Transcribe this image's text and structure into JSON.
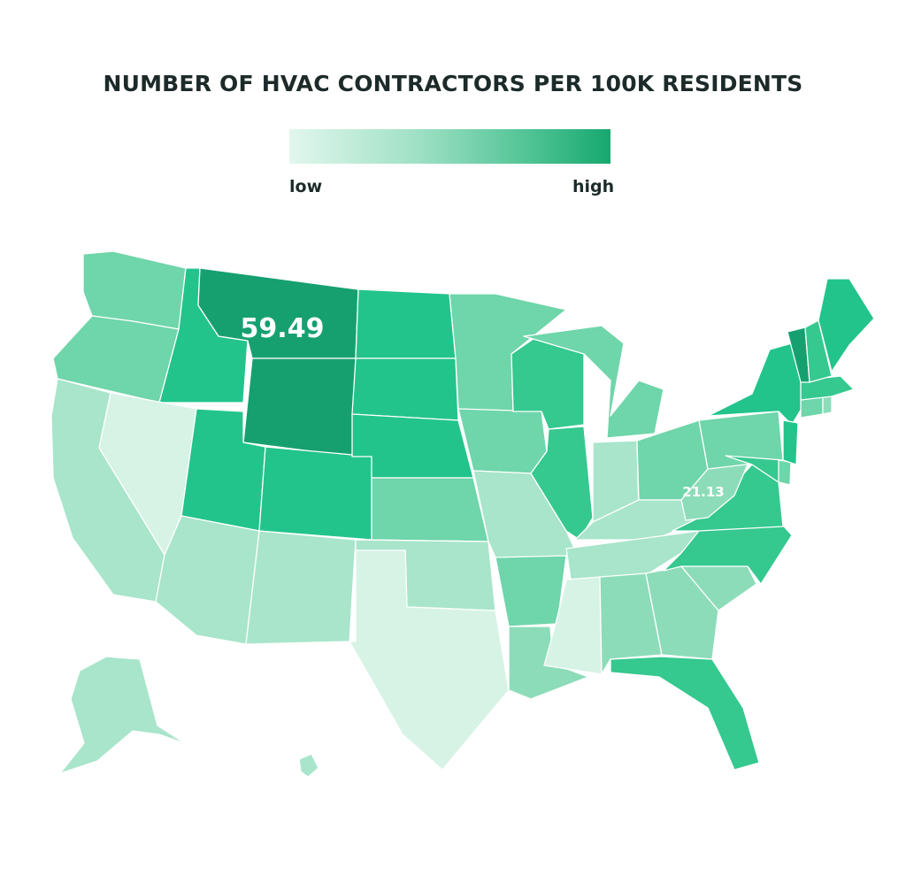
{
  "title": "NUMBER OF HVAC CONTRACTORS PER 100K RESIDENTS",
  "legend": {
    "low_label": "low",
    "high_label": "high",
    "colors": [
      "#e2f7ee",
      "#9fe0c5",
      "#4fc394",
      "#17a86f"
    ]
  },
  "labels": {
    "montana_value": "59.49",
    "west_virginia_value": "21.13"
  },
  "colors": {
    "darkest": "#16a070",
    "dark": "#22c48b",
    "mid_dark": "#35c88f",
    "mid": "#4fcc98",
    "mid_light": "#6fd5aa",
    "light": "#8ddcb9",
    "lighter": "#a8e5ca",
    "lightest": "#d6f3e6"
  }
}
